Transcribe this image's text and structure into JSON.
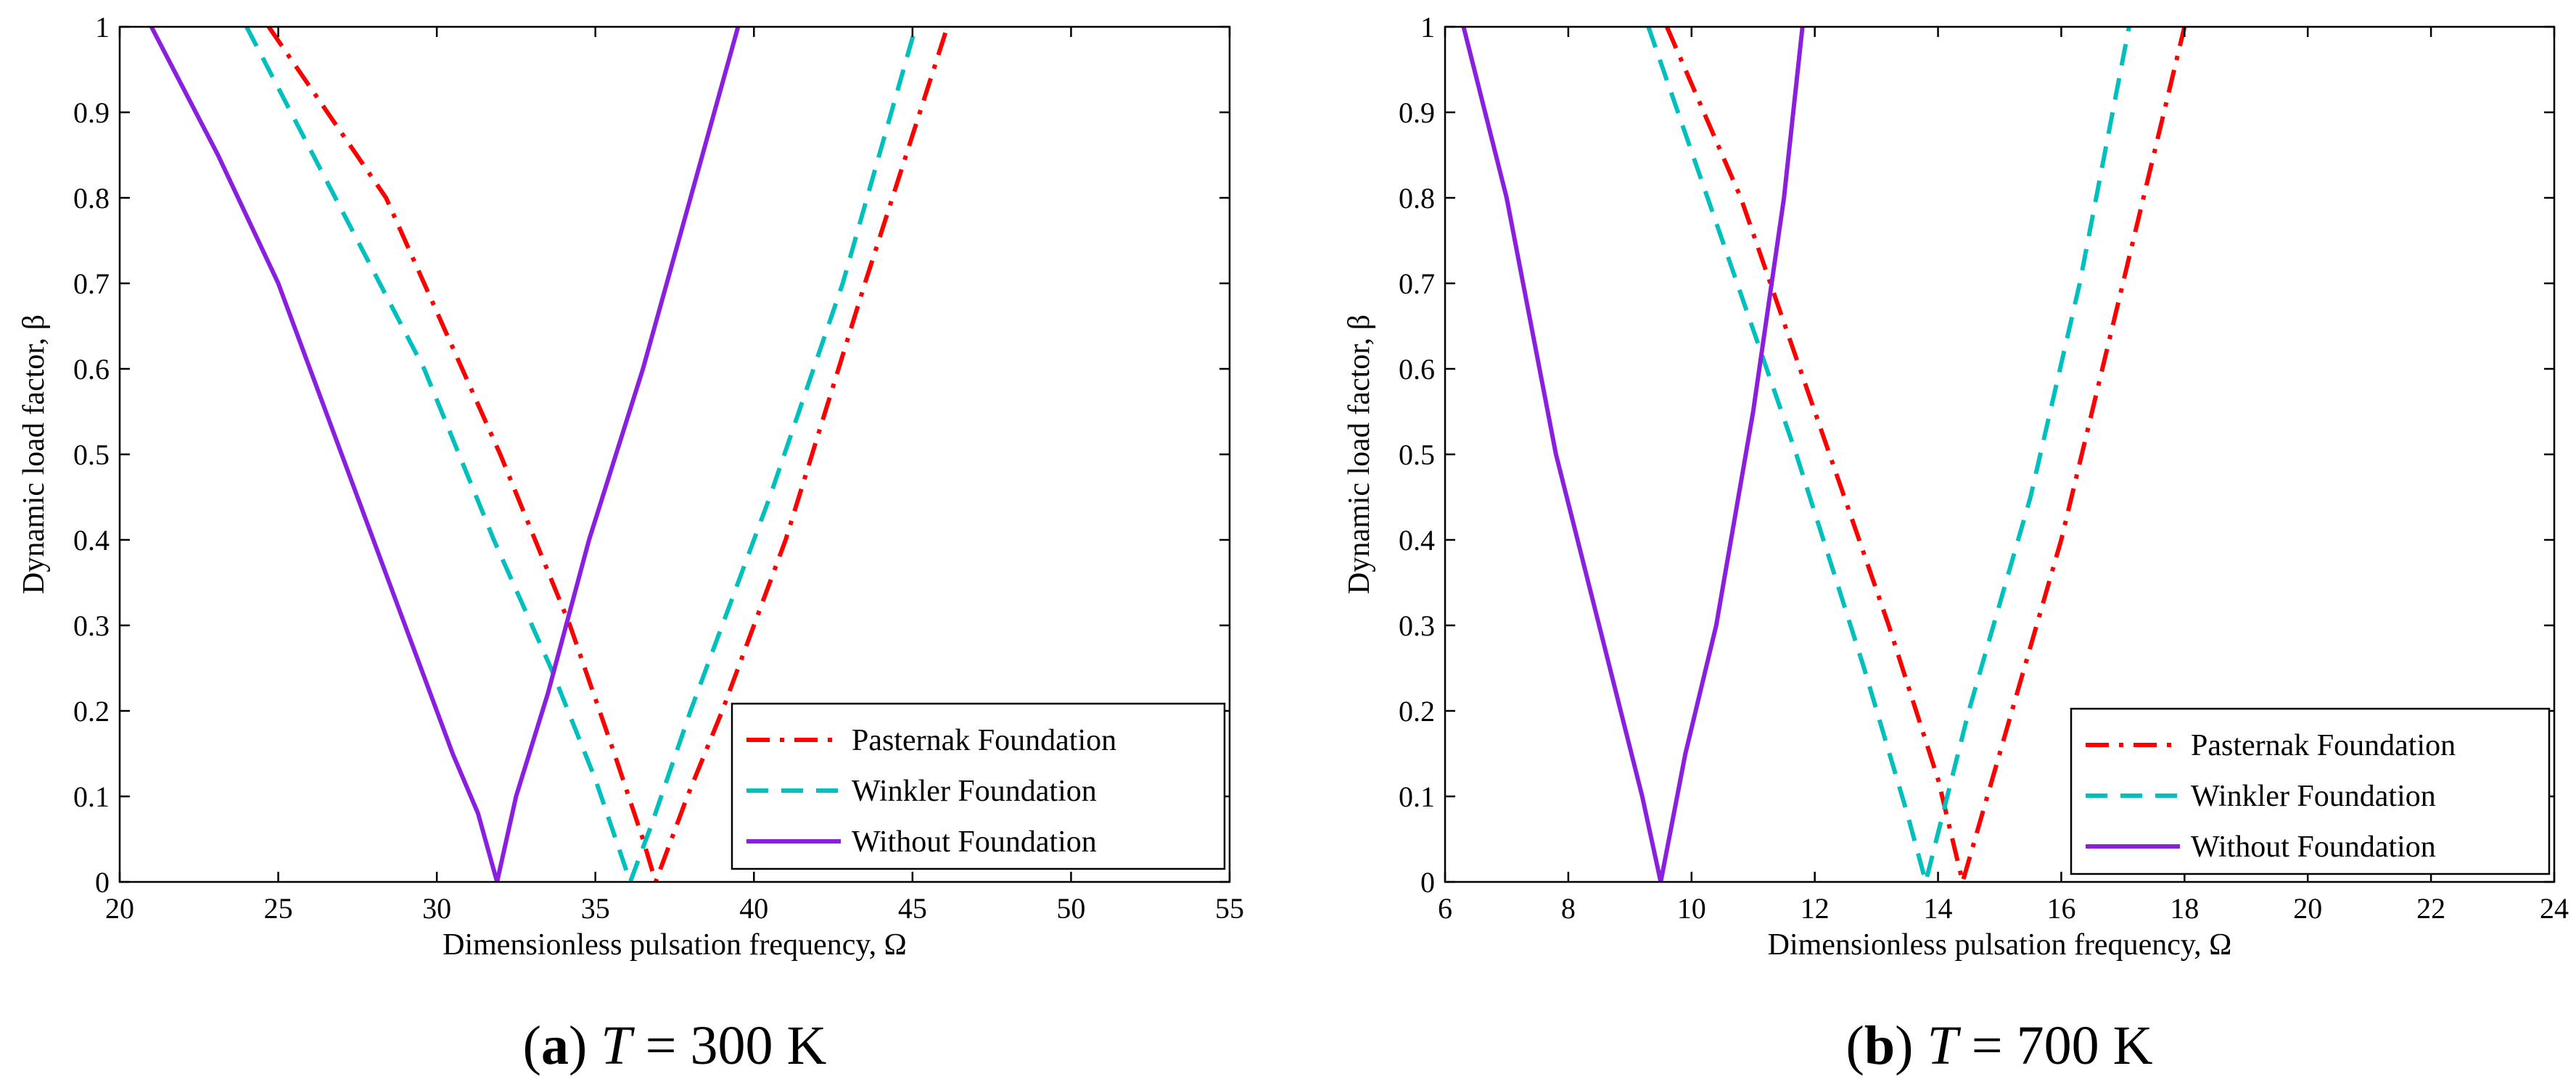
{
  "colors": {
    "pasternak": "#ff0000",
    "winkler": "#00bfbf",
    "without": "#8a1fe0"
  },
  "legend": [
    "Pasternak Foundation",
    "Winkler Foundation",
    "Without Foundation"
  ],
  "captions": [
    {
      "letter": "a",
      "var": "T",
      "eq": " = ",
      "value": "300 K"
    },
    {
      "letter": "b",
      "var": "T",
      "eq": " = ",
      "value": "700 K"
    }
  ],
  "chart_data": [
    {
      "type": "line",
      "xlabel": "Dimensionless pulsation frequency, Ω",
      "ylabel": "Dynamic load factor, β",
      "xlim": [
        20,
        55
      ],
      "ylim": [
        0,
        1
      ],
      "xticks": [
        20,
        25,
        30,
        35,
        40,
        45,
        50,
        55
      ],
      "yticks": [
        0,
        0.1,
        0.2,
        0.3,
        0.4,
        0.5,
        0.6,
        0.7,
        0.8,
        0.9,
        1
      ],
      "series": [
        {
          "name": "Pasternak Foundation",
          "style": "dashdot",
          "x": [
            24.7,
            28.4,
            32.0,
            34.2,
            35.6,
            36.5,
            36.9,
            37.9,
            39.0,
            41.0,
            43.5,
            46.1
          ],
          "y": [
            1.0,
            0.8,
            0.5,
            0.3,
            0.15,
            0.05,
            0.0,
            0.1,
            0.2,
            0.4,
            0.7,
            1.0
          ]
        },
        {
          "name": "Winkler Foundation",
          "style": "dashed",
          "x": [
            24.0,
            26.1,
            29.6,
            31.8,
            33.6,
            35.0,
            36.1,
            36.8,
            38.0,
            40.5,
            42.8,
            45.1
          ],
          "y": [
            1.0,
            0.85,
            0.6,
            0.4,
            0.25,
            0.12,
            0.0,
            0.07,
            0.2,
            0.45,
            0.7,
            1.0
          ]
        },
        {
          "name": "Without Foundation",
          "style": "solid",
          "x": [
            21.0,
            23.1,
            25.0,
            27.0,
            29.0,
            30.5,
            31.3,
            31.9,
            32.5,
            33.5,
            34.8,
            36.5,
            38.0,
            39.5
          ],
          "y": [
            1.0,
            0.85,
            0.7,
            0.5,
            0.3,
            0.15,
            0.08,
            0.0,
            0.1,
            0.22,
            0.4,
            0.6,
            0.8,
            1.0
          ]
        }
      ]
    },
    {
      "type": "line",
      "xlabel": "Dimensionless pulsation frequency, Ω",
      "ylabel": "Dynamic load factor, β",
      "xlim": [
        6,
        24
      ],
      "ylim": [
        0,
        1
      ],
      "xticks": [
        6,
        8,
        10,
        12,
        14,
        16,
        18,
        20,
        22,
        24
      ],
      "yticks": [
        0,
        0.1,
        0.2,
        0.3,
        0.4,
        0.5,
        0.6,
        0.7,
        0.8,
        0.9,
        1
      ],
      "series": [
        {
          "name": "Pasternak Foundation",
          "style": "dashdot",
          "x": [
            9.6,
            10.8,
            12.0,
            13.2,
            14.0,
            14.4,
            15.0,
            16.0,
            17.0,
            18.0
          ],
          "y": [
            1.0,
            0.8,
            0.55,
            0.3,
            0.12,
            0.0,
            0.15,
            0.4,
            0.7,
            1.0
          ]
        },
        {
          "name": "Winkler Foundation",
          "style": "dashed",
          "x": [
            9.3,
            10.5,
            11.7,
            12.8,
            13.5,
            13.8,
            14.5,
            15.5,
            16.3,
            17.1
          ],
          "y": [
            1.0,
            0.75,
            0.5,
            0.25,
            0.08,
            0.0,
            0.2,
            0.45,
            0.7,
            1.0
          ]
        },
        {
          "name": "Without Foundation",
          "style": "solid",
          "x": [
            6.3,
            7.0,
            7.8,
            8.5,
            9.2,
            9.5,
            9.9,
            10.4,
            11.0,
            11.5,
            11.8
          ],
          "y": [
            1.0,
            0.8,
            0.5,
            0.3,
            0.1,
            0.0,
            0.15,
            0.3,
            0.55,
            0.8,
            1.0
          ]
        }
      ]
    }
  ]
}
